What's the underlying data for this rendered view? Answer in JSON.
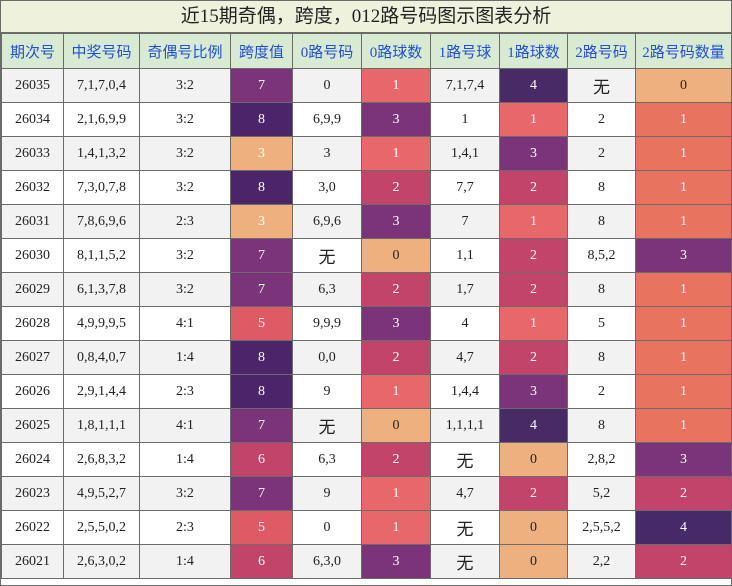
{
  "title": "近15期奇偶，跨度，012路号码图示图表分析",
  "headers": [
    "期次号",
    "中奖号码",
    "奇偶号比例",
    "跨度值",
    "0路号码",
    "0路球数",
    "1路号球",
    "1路球数",
    "2路号码",
    "2路号码数量"
  ],
  "rows": [
    [
      "26035",
      "7,1,7,0,4",
      "3:2",
      "7",
      "0",
      "1",
      "7,1,7,4",
      "4",
      "无",
      "0"
    ],
    [
      "26034",
      "2,1,6,9,9",
      "3:2",
      "8",
      "6,9,9",
      "3",
      "1",
      "1",
      "2",
      "1"
    ],
    [
      "26033",
      "1,4,1,3,2",
      "3:2",
      "3",
      "3",
      "1",
      "1,4,1",
      "3",
      "2",
      "1"
    ],
    [
      "26032",
      "7,3,0,7,8",
      "3:2",
      "8",
      "3,0",
      "2",
      "7,7",
      "2",
      "8",
      "1"
    ],
    [
      "26031",
      "7,8,6,9,6",
      "2:3",
      "3",
      "6,9,6",
      "3",
      "7",
      "1",
      "8",
      "1"
    ],
    [
      "26030",
      "8,1,1,5,2",
      "3:2",
      "7",
      "无",
      "0",
      "1,1",
      "2",
      "8,5,2",
      "3"
    ],
    [
      "26029",
      "6,1,3,7,8",
      "3:2",
      "7",
      "6,3",
      "2",
      "1,7",
      "2",
      "8",
      "1"
    ],
    [
      "26028",
      "4,9,9,9,5",
      "4:1",
      "5",
      "9,9,9",
      "3",
      "4",
      "1",
      "5",
      "1"
    ],
    [
      "26027",
      "0,8,4,0,7",
      "1:4",
      "8",
      "0,0",
      "2",
      "4,7",
      "2",
      "8",
      "1"
    ],
    [
      "26026",
      "2,9,1,4,4",
      "2:3",
      "8",
      "9",
      "1",
      "1,4,4",
      "3",
      "2",
      "1"
    ],
    [
      "26025",
      "1,8,1,1,1",
      "4:1",
      "7",
      "无",
      "0",
      "1,1,1,1",
      "4",
      "8",
      "1"
    ],
    [
      "26024",
      "2,6,8,3,2",
      "1:4",
      "6",
      "6,3",
      "2",
      "无",
      "0",
      "2,8,2",
      "3"
    ],
    [
      "26023",
      "4,9,5,2,7",
      "3:2",
      "7",
      "9",
      "1",
      "4,7",
      "2",
      "5,2",
      "2"
    ],
    [
      "26022",
      "2,5,5,0,2",
      "2:3",
      "5",
      "0",
      "1",
      "无",
      "0",
      "2,5,5,2",
      "4"
    ],
    [
      "26021",
      "2,6,3,0,2",
      "1:4",
      "6",
      "6,3,0",
      "3",
      "无",
      "0",
      "2,2",
      "2"
    ]
  ],
  "colors": {
    "span": {
      "3": "#eeb07f",
      "5": "#de5a64",
      "6": "#c2446a",
      "7": "#7b3479",
      "8": "#4b2469"
    },
    "count": {
      "0": "#eeb07f",
      "1": "#e8676a",
      "2": "#c2446a",
      "3": "#7b3479",
      "4": "#472a66"
    },
    "count2": {
      "0": "#eeb07f",
      "1": "#e8735e",
      "2": "#c2446a",
      "3": "#7b3479",
      "4": "#452968"
    }
  },
  "chart_data": {
    "type": "table",
    "title": "近15期奇偶，跨度，012路号码图示图表分析",
    "columns": [
      "期次号",
      "中奖号码",
      "奇偶号比例",
      "跨度值",
      "0路号码",
      "0路球数",
      "1路号球",
      "1路球数",
      "2路号码",
      "2路号码数量"
    ],
    "span_values": [
      7,
      8,
      3,
      8,
      3,
      7,
      7,
      5,
      8,
      8,
      7,
      6,
      7,
      5,
      6
    ],
    "route0_counts": [
      1,
      3,
      1,
      2,
      3,
      0,
      2,
      3,
      2,
      1,
      0,
      2,
      1,
      1,
      3
    ],
    "route1_counts": [
      4,
      1,
      3,
      2,
      1,
      2,
      2,
      1,
      2,
      3,
      4,
      0,
      2,
      0,
      0
    ],
    "route2_counts": [
      0,
      1,
      1,
      1,
      1,
      3,
      1,
      1,
      1,
      1,
      1,
      3,
      2,
      4,
      2
    ]
  }
}
